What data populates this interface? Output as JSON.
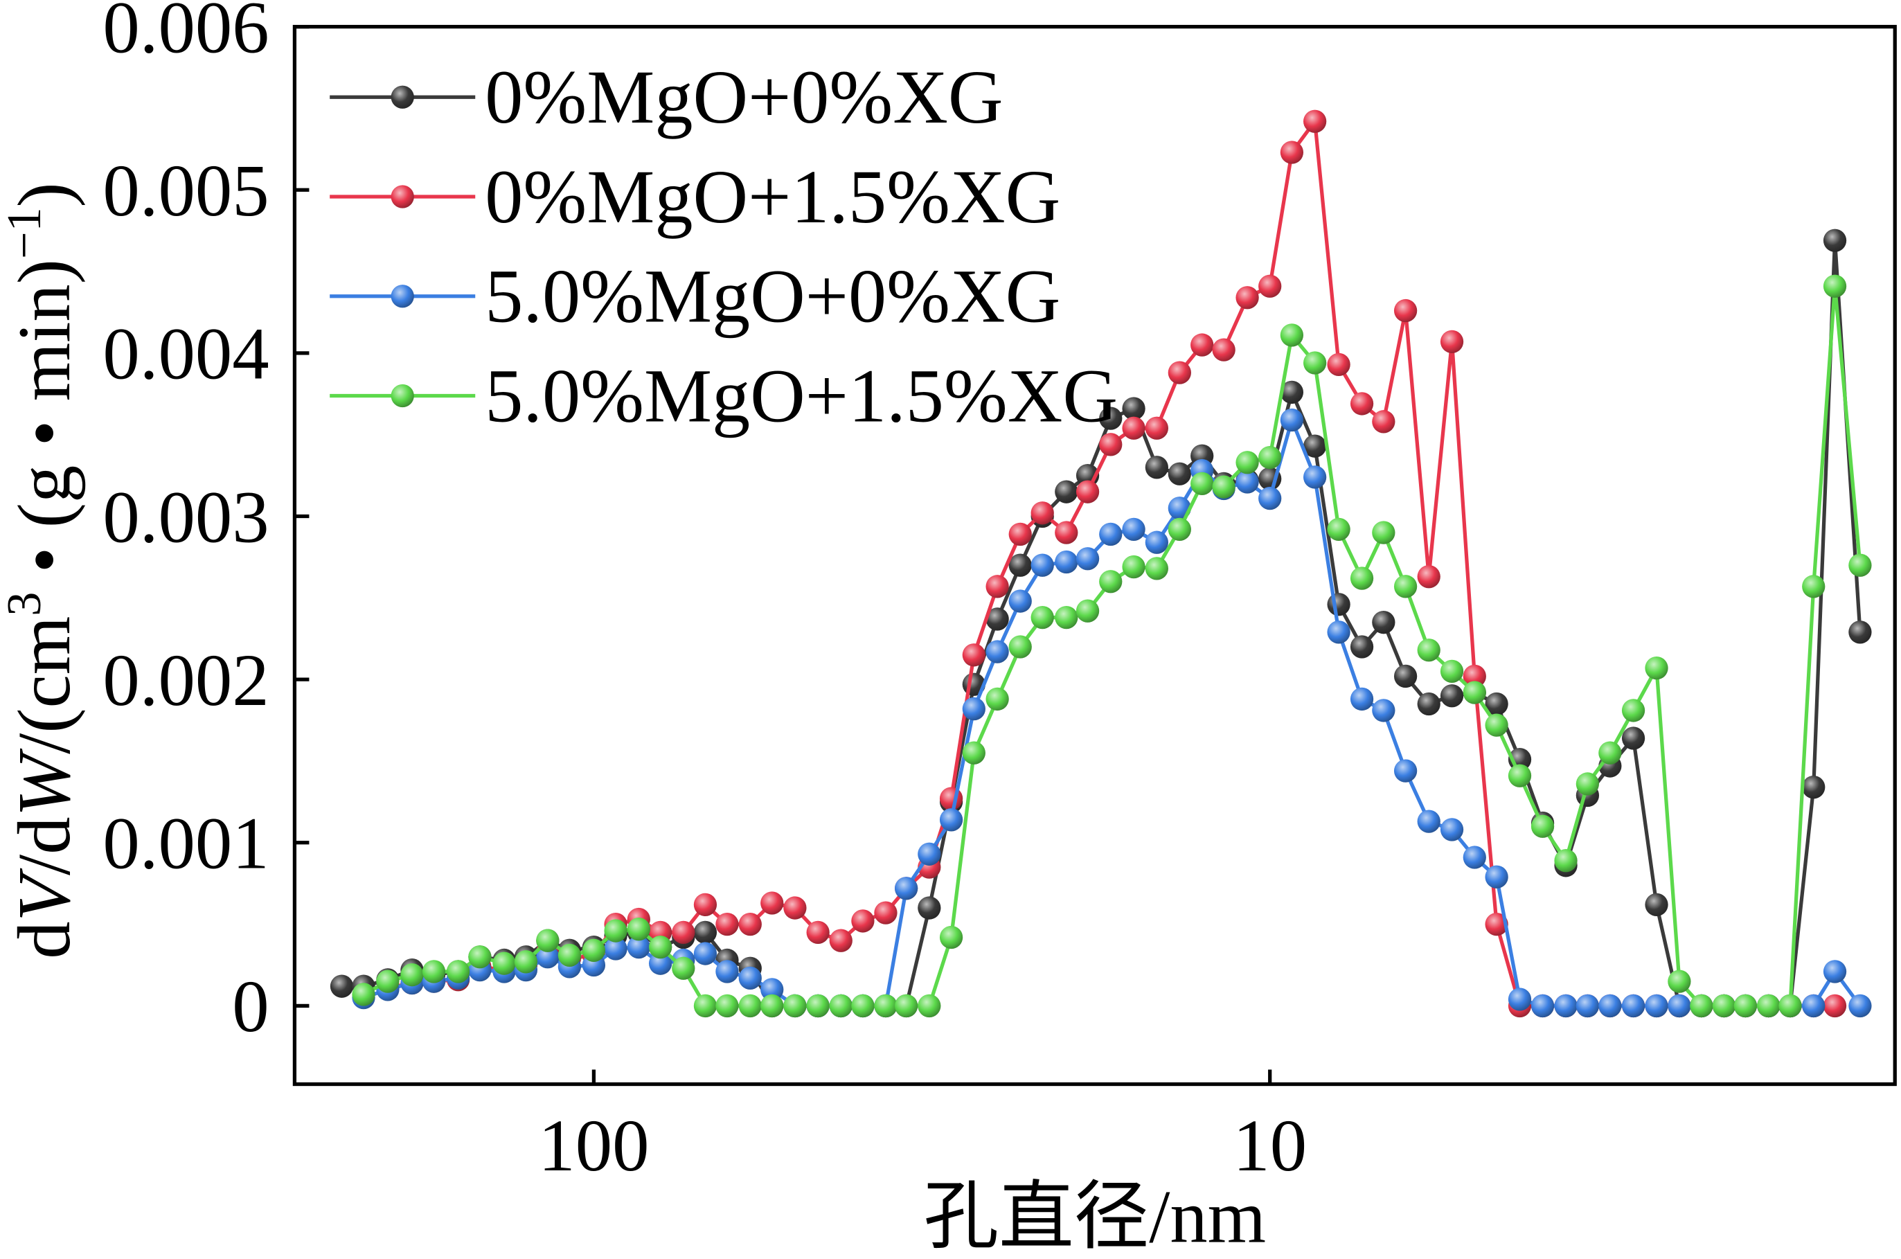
{
  "chart_data": {
    "type": "line",
    "marker": "circle",
    "xlabel": "孔直径/nm",
    "ylabel": [
      {
        "t": "d"
      },
      {
        "t": "V",
        "style": "italic"
      },
      {
        "t": "/d"
      },
      {
        "t": "W",
        "style": "italic"
      },
      {
        "t": "/(cm"
      },
      {
        "t": "3",
        "style": "sup"
      },
      {
        "t": " • (g • min)"
      },
      {
        "t": "−1",
        "style": "sup"
      },
      {
        "t": ")"
      }
    ],
    "xscale": "log",
    "xaxis_reversed": true,
    "xlim": [
      277,
      1.19
    ],
    "ylim": [
      -0.00048,
      0.006
    ],
    "xticks": [
      {
        "value": 100,
        "label": "100"
      },
      {
        "value": 10,
        "label": "10"
      }
    ],
    "yticks": [
      {
        "value": 0,
        "label": "0"
      },
      {
        "value": 0.001,
        "label": "0.001"
      },
      {
        "value": 0.002,
        "label": "0.002"
      },
      {
        "value": 0.003,
        "label": "0.003"
      },
      {
        "value": 0.004,
        "label": "0.004"
      },
      {
        "value": 0.005,
        "label": "0.005"
      },
      {
        "value": 0.006,
        "label": "0.006"
      }
    ],
    "grid": false,
    "legend_position": "top-left",
    "x": [
      235.9,
      219.0,
      201.7,
      185.7,
      172.4,
      158.7,
      147.4,
      135.7,
      126.0,
      117.0,
      108.6,
      100.0,
      92.8,
      85.8,
      79.7,
      73.7,
      68.4,
      63.5,
      58.7,
      54.5,
      50.4,
      46.6,
      43.1,
      40.0,
      37.0,
      34.5,
      31.9,
      29.6,
      27.4,
      25.3,
      23.4,
      21.7,
      20.0,
      18.6,
      17.2,
      15.9,
      14.7,
      13.6,
      12.6,
      11.7,
      10.8,
      10.0,
      9.28,
      8.58,
      7.91,
      7.31,
      6.79,
      6.3,
      5.82,
      5.38,
      4.98,
      4.62,
      4.27,
      3.95,
      3.65,
      3.39,
      3.14,
      2.9,
      2.68,
      2.48,
      2.3,
      2.13,
      1.98,
      1.83,
      1.7,
      1.57,
      1.46,
      1.34
    ],
    "series": [
      {
        "name": "0%MgO+0%XG",
        "color": "#3a3a3a",
        "values": [
          0.00012,
          0.00012,
          0.00016,
          0.00022,
          0.00019,
          0.00021,
          0.0003,
          0.00028,
          0.0003,
          0.0004,
          0.00034,
          0.00036,
          0.00043,
          0.00045,
          0.00036,
          0.00042,
          0.00045,
          0.00028,
          0.00023,
          0,
          0,
          0,
          0,
          0,
          0,
          0,
          0.0006,
          0.00125,
          0.00197,
          0.00237,
          0.0027,
          0.003,
          0.00315,
          0.00325,
          0.0036,
          0.00366,
          0.0033,
          0.00326,
          0.00337,
          0.0032,
          0.00322,
          0.00323,
          0.00376,
          0.00343,
          0.00246,
          0.0022,
          0.00235,
          0.00202,
          0.00185,
          0.0019,
          0.00192,
          0.00185,
          0.00151,
          0.00112,
          0.00086,
          0.00129,
          0.00147,
          0.00164,
          0.00062,
          0,
          0,
          0,
          0,
          0,
          0,
          0.00134,
          0.00469,
          0.00229
        ]
      },
      {
        "name": "0%MgO+1.5%XG",
        "color": "#e8364c",
        "values": [
          null,
          null,
          0.00011,
          0.00014,
          0.00015,
          0.00016,
          0.00024,
          0.00022,
          0.00025,
          0.00033,
          0.00029,
          0.00031,
          0.0005,
          0.00053,
          0.00045,
          0.00045,
          0.00062,
          0.0005,
          0.0005,
          0.00063,
          0.0006,
          0.00045,
          0.0004,
          0.00052,
          0.00057,
          0.00072,
          0.00085,
          0.00127,
          0.00215,
          0.00257,
          0.00289,
          0.00302,
          0.0029,
          0.00315,
          0.00344,
          0.00354,
          0.00354,
          0.00388,
          0.00405,
          0.00402,
          0.00434,
          0.00441,
          0.00523,
          0.00542,
          0.00393,
          0.00369,
          0.00358,
          0.00426,
          0.00263,
          0.00407,
          0.00202,
          0.0005,
          0,
          0,
          0,
          0,
          0,
          0,
          0,
          0,
          0,
          0,
          0,
          0,
          0,
          0,
          0,
          null
        ]
      },
      {
        "name": "5.0%MgO+0%XG",
        "color": "#3b7fe2",
        "values": [
          null,
          5e-05,
          0.0001,
          0.00014,
          0.00015,
          0.00017,
          0.00022,
          0.00021,
          0.00022,
          0.0003,
          0.00024,
          0.00025,
          0.00035,
          0.00036,
          0.00026,
          0.00028,
          0.00032,
          0.00021,
          0.00017,
          0.0001,
          0,
          0,
          0,
          0,
          0,
          0.00072,
          0.00093,
          0.00114,
          0.00182,
          0.00217,
          0.00248,
          0.0027,
          0.00272,
          0.00274,
          0.00289,
          0.00292,
          0.00284,
          0.00305,
          0.00328,
          0.00317,
          0.00321,
          0.00311,
          0.00359,
          0.00324,
          0.00229,
          0.00188,
          0.00181,
          0.00144,
          0.00113,
          0.00108,
          0.00091,
          0.00079,
          4e-05,
          0,
          0,
          0,
          0,
          0,
          0,
          0,
          0,
          0,
          0,
          0,
          0,
          0,
          0.00021,
          0
        ]
      },
      {
        "name": "5.0%MgO+1.5%XG",
        "color": "#5cd94b",
        "values": [
          null,
          7e-05,
          0.00015,
          0.00019,
          0.00021,
          0.00021,
          0.0003,
          0.00026,
          0.00027,
          0.0004,
          0.00031,
          0.00034,
          0.00046,
          0.00047,
          0.00036,
          0.00023,
          0,
          0,
          0,
          0,
          0,
          0,
          0,
          0,
          0,
          0,
          0,
          0.00042,
          0.00155,
          0.00188,
          0.0022,
          0.00238,
          0.00238,
          0.00242,
          0.0026,
          0.00269,
          0.00268,
          0.00292,
          0.0032,
          0.00318,
          0.00333,
          0.00336,
          0.00411,
          0.00394,
          0.00292,
          0.00262,
          0.0029,
          0.00257,
          0.00218,
          0.00205,
          0.00192,
          0.00172,
          0.00141,
          0.0011,
          0.00089,
          0.00136,
          0.00155,
          0.00181,
          0.00207,
          0.00015,
          0,
          0,
          0,
          0,
          0,
          0.00257,
          0.00441,
          0.0027
        ]
      }
    ]
  }
}
